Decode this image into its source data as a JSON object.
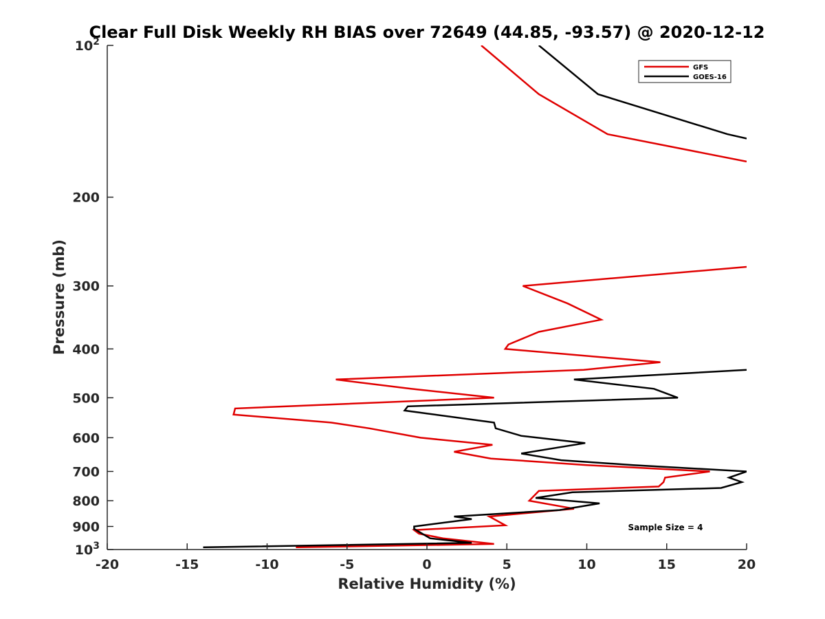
{
  "chart_data": {
    "type": "line",
    "title": "Clear Full Disk Weekly RH BIAS over 72649 (44.85, -93.57) @ 2020-12-12",
    "xlabel": "Relative Humidity (%)",
    "ylabel": "Pressure (mb)",
    "xlim": [
      -20,
      20
    ],
    "ylim": [
      100,
      1000
    ],
    "y_scale": "log",
    "y_reversed": true,
    "grid": false,
    "legend_position": "top-right",
    "x_ticks": [
      "-20",
      "-15",
      "-10",
      "-5",
      "0",
      "5",
      "10",
      "15",
      "20"
    ],
    "y_ticks": [
      {
        "value": 100,
        "base": "10",
        "exp": "2"
      },
      {
        "value": 200,
        "label": "200"
      },
      {
        "value": 300,
        "label": "300"
      },
      {
        "value": 400,
        "label": "400"
      },
      {
        "value": 500,
        "label": "500"
      },
      {
        "value": 600,
        "label": "600"
      },
      {
        "value": 700,
        "label": "700"
      },
      {
        "value": 800,
        "label": "800"
      },
      {
        "value": 900,
        "label": "900"
      },
      {
        "value": 1000,
        "base": "10",
        "exp": "3"
      }
    ],
    "annotation": "Sample Size = 4",
    "series": [
      {
        "name": "GFS",
        "color": "#e00000",
        "points": [
          [
            3.4,
            100
          ],
          [
            7.0,
            125
          ],
          [
            11.3,
            150
          ],
          [
            20.0,
            170
          ],
          [
            null,
            null
          ],
          [
            20.0,
            275
          ],
          [
            6.0,
            300
          ],
          [
            8.8,
            325
          ],
          [
            10.9,
            350
          ],
          [
            7.0,
            370
          ],
          [
            5.1,
            392
          ],
          [
            4.9,
            400
          ],
          [
            14.6,
            425
          ],
          [
            9.8,
            440
          ],
          [
            -5.7,
            460
          ],
          [
            -1.0,
            480
          ],
          [
            4.2,
            500
          ],
          [
            -12.0,
            525
          ],
          [
            -12.1,
            540
          ],
          [
            -6.0,
            560
          ],
          [
            -3.6,
            575
          ],
          [
            -0.4,
            600
          ],
          [
            4.1,
            620
          ],
          [
            1.7,
            640
          ],
          [
            4.0,
            660
          ],
          [
            10.0,
            680
          ],
          [
            17.7,
            700
          ],
          [
            14.9,
            720
          ],
          [
            14.8,
            735
          ],
          [
            14.5,
            750
          ],
          [
            7.0,
            765
          ],
          [
            6.4,
            800
          ],
          [
            9.2,
            830
          ],
          [
            3.9,
            860
          ],
          [
            4.9,
            895
          ],
          [
            -0.8,
            915
          ],
          [
            -0.5,
            930
          ],
          [
            1.0,
            950
          ],
          [
            4.2,
            975
          ],
          [
            -8.2,
            990
          ]
        ]
      },
      {
        "name": "GOES-16",
        "color": "#000000",
        "points": [
          [
            7.0,
            100
          ],
          [
            10.7,
            125
          ],
          [
            18.8,
            150
          ],
          [
            20.0,
            153
          ],
          [
            null,
            null
          ],
          [
            20.0,
            440
          ],
          [
            9.2,
            460
          ],
          [
            14.2,
            480
          ],
          [
            15.7,
            500
          ],
          [
            -1.2,
            520
          ],
          [
            -1.4,
            530
          ],
          [
            4.2,
            560
          ],
          [
            4.3,
            575
          ],
          [
            5.9,
            595
          ],
          [
            9.9,
            615
          ],
          [
            5.9,
            645
          ],
          [
            8.4,
            665
          ],
          [
            12.9,
            680
          ],
          [
            20.0,
            700
          ],
          [
            18.9,
            720
          ],
          [
            19.7,
            735
          ],
          [
            18.4,
            755
          ],
          [
            9.1,
            770
          ],
          [
            6.8,
            790
          ],
          [
            10.8,
            810
          ],
          [
            8.3,
            835
          ],
          [
            1.7,
            860
          ],
          [
            2.8,
            870
          ],
          [
            -0.8,
            900
          ],
          [
            -0.8,
            910
          ],
          [
            0.2,
            950
          ],
          [
            2.8,
            970
          ],
          [
            -14.0,
            990
          ]
        ]
      }
    ]
  }
}
